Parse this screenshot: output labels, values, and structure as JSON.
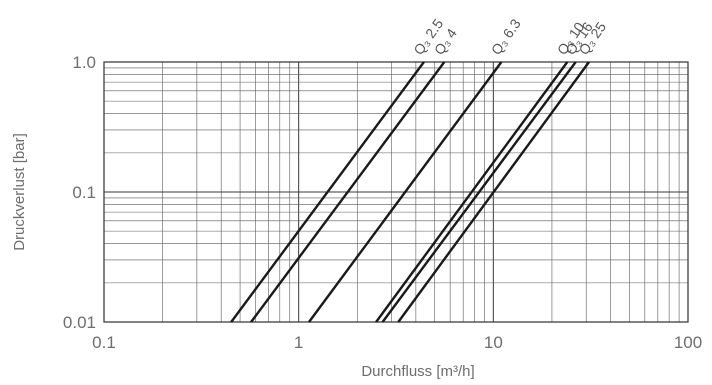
{
  "chart_data": {
    "type": "line",
    "xscale": "log",
    "yscale": "log",
    "xlim": [
      0.1,
      100
    ],
    "ylim": [
      0.01,
      1.0
    ],
    "xticks": [
      {
        "value": 0.1,
        "label": "0.1"
      },
      {
        "value": 1,
        "label": "1"
      },
      {
        "value": 10,
        "label": "10"
      },
      {
        "value": 100,
        "label": "100"
      }
    ],
    "yticks": [
      {
        "value": 0.01,
        "label": "0.01"
      },
      {
        "value": 0.1,
        "label": "0.1"
      },
      {
        "value": 1.0,
        "label": "1.0"
      }
    ],
    "xlabel": "Durchfluss [m³/h]",
    "ylabel": "Druckverlust [bar]",
    "grid": true,
    "legend": "none",
    "series": [
      {
        "name": "Q₃ 2.5",
        "x": [
          0.45,
          4.4
        ],
        "y": [
          0.01,
          1.0
        ]
      },
      {
        "name": "Q₃ 4",
        "x": [
          0.57,
          5.6
        ],
        "y": [
          0.01,
          1.0
        ]
      },
      {
        "name": "Q₃ 6.3",
        "x": [
          1.13,
          11.0
        ],
        "y": [
          0.01,
          1.0
        ]
      },
      {
        "name": "Q₃ 10",
        "x": [
          2.5,
          24.0
        ],
        "y": [
          0.01,
          1.0
        ]
      },
      {
        "name": "Q₃ 16",
        "x": [
          2.7,
          26.5
        ],
        "y": [
          0.01,
          1.0
        ]
      },
      {
        "name": "Q₃ 25",
        "x": [
          3.25,
          31.0
        ],
        "y": [
          0.01,
          1.0
        ]
      }
    ]
  }
}
